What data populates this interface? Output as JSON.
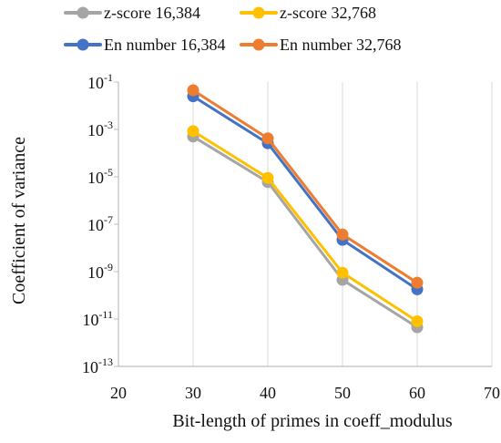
{
  "chart_data": {
    "type": "line",
    "xlabel": "Bit-length of primes in coeff_modulus",
    "ylabel": "Coefficient of variance",
    "xlim": [
      20,
      70
    ],
    "xticks": [
      20,
      30,
      40,
      50,
      60,
      70
    ],
    "ylim_log10": [
      -13,
      -1
    ],
    "y_scale": "log",
    "yticks": [
      {
        "base": "10",
        "exp": "-1"
      },
      {
        "base": "10",
        "exp": "-3"
      },
      {
        "base": "10",
        "exp": "-5"
      },
      {
        "base": "10",
        "exp": "-7"
      },
      {
        "base": "10",
        "exp": "-9"
      },
      {
        "base": "10",
        "exp": "-11"
      },
      {
        "base": "10",
        "exp": "-13"
      }
    ],
    "grid": "vertical",
    "legend_position": "top",
    "series": [
      {
        "name": "z-score 16,384",
        "color": "#a5a5a5",
        "x": [
          30,
          40,
          50,
          60
        ],
        "y": [
          0.0005,
          6e-06,
          4.5e-10,
          4.5e-12
        ]
      },
      {
        "name": "z-score 32,768",
        "color": "#ffc000",
        "x": [
          30,
          40,
          50,
          60
        ],
        "y": [
          0.00085,
          9e-06,
          9e-10,
          8e-12
        ]
      },
      {
        "name": "En number 16,384",
        "color": "#4472c4",
        "x": [
          30,
          40,
          50,
          60
        ],
        "y": [
          0.025,
          0.00026,
          2.2e-08,
          1.8e-10
        ]
      },
      {
        "name": "En number 32,768",
        "color": "#ed7d31",
        "x": [
          30,
          40,
          50,
          60
        ],
        "y": [
          0.045,
          0.00042,
          3.7e-08,
          3.4e-10
        ]
      }
    ]
  }
}
